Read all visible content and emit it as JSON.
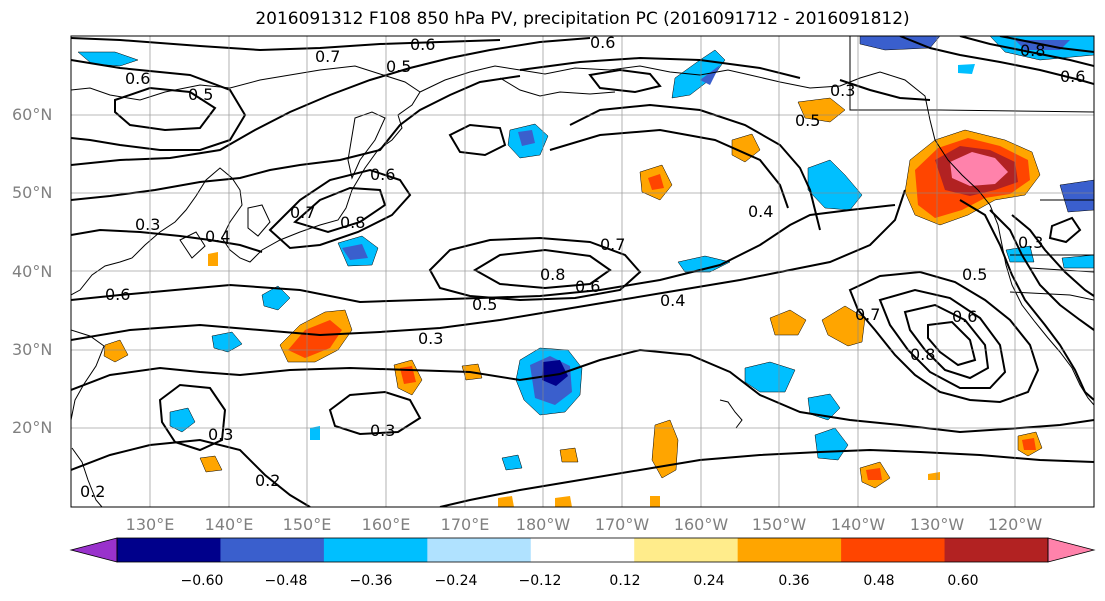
{
  "title": "2016091312 F108 850 hPa PV, precipitation PC (2016091712 - 2016091812)",
  "lat_ticks": [
    "60°N",
    "50°N",
    "40°N",
    "30°N",
    "20°N"
  ],
  "lon_ticks": [
    "130°E",
    "140°E",
    "150°E",
    "160°E",
    "170°E",
    "180°W",
    "170°W",
    "160°W",
    "150°W",
    "140°W",
    "130°W",
    "120°W"
  ],
  "colorbar": {
    "colors": [
      "#9932cc",
      "#00008b",
      "#3a5fcd",
      "#00bfff",
      "#b0e2ff",
      "#ffffff",
      "#ffec8b",
      "#ffa500",
      "#ff4500",
      "#b22222",
      "#ff82ab"
    ],
    "labels": [
      "−0.60",
      "−0.48",
      "−0.36",
      "−0.24",
      "−0.12",
      "0.12",
      "0.24",
      "0.36",
      "0.48",
      "0.60"
    ]
  },
  "contour_labels": [
    "0.7",
    "0.6",
    "0.5",
    "0.6",
    "0.6",
    "0.5",
    "0.3",
    "0.5",
    "0.6",
    "0.7",
    "0.8",
    "0.6",
    "0.4",
    "0.3",
    "0.4",
    "0.7",
    "0.8",
    "0.6",
    "0.5",
    "0.4",
    "0.3",
    "0.3",
    "0.3",
    "0.2",
    "0.2",
    "0.7",
    "0.8",
    "0.5",
    "0.6",
    "0.3",
    "0.8",
    "0.6"
  ]
}
